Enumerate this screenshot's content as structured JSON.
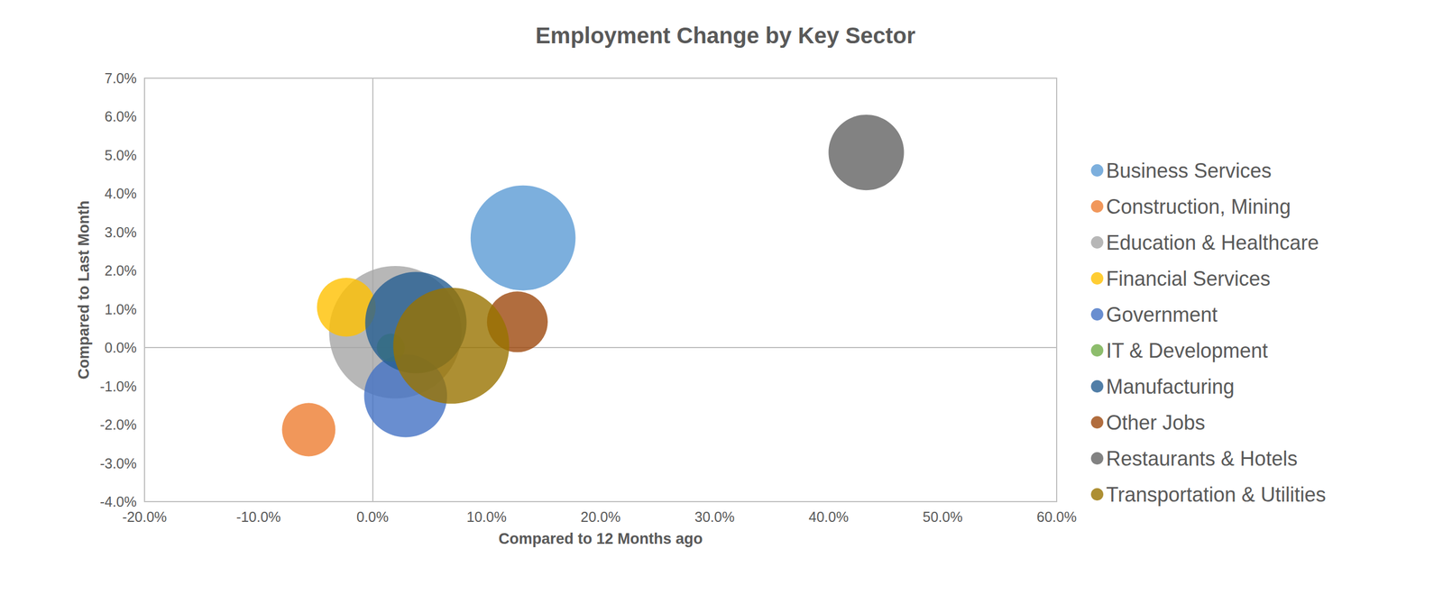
{
  "chart_data": {
    "type": "bubble",
    "title": "Employment Change by Key Sector",
    "x_label": "Compared to 12 Months ago",
    "y_label": "Compared to Last Month",
    "xlim": [
      -20,
      60
    ],
    "xticks": [
      {
        "value": -20,
        "label": "-20.0%"
      },
      {
        "value": -10,
        "label": "-10.0%"
      },
      {
        "value": 0,
        "label": "0.0%"
      },
      {
        "value": 10,
        "label": "10.0%"
      },
      {
        "value": 20,
        "label": "20.0%"
      },
      {
        "value": 30,
        "label": "30.0%"
      },
      {
        "value": 40,
        "label": "40.0%"
      },
      {
        "value": 50,
        "label": "50.0%"
      },
      {
        "value": 60,
        "label": "60.0%"
      }
    ],
    "ylim": [
      -4,
      7
    ],
    "yticks": [
      {
        "value": -4,
        "label": "-4.0%"
      },
      {
        "value": -3,
        "label": "-3.0%"
      },
      {
        "value": -2,
        "label": "-2.0%"
      },
      {
        "value": -1,
        "label": "-1.0%"
      },
      {
        "value": 0,
        "label": "0.0%"
      },
      {
        "value": 1,
        "label": "1.0%"
      },
      {
        "value": 2,
        "label": "2.0%"
      },
      {
        "value": 3,
        "label": "3.0%"
      },
      {
        "value": 4,
        "label": "4.0%"
      },
      {
        "value": 5,
        "label": "5.0%"
      },
      {
        "value": 6,
        "label": "6.0%"
      },
      {
        "value": 7,
        "label": "7.0%"
      }
    ],
    "grid": false,
    "legend": "right",
    "marker": "circle",
    "series": [
      {
        "name": "Business Services",
        "color": "#5b9bd5",
        "x": [
          13.2
        ],
        "y": [
          2.85
        ],
        "sizes": [
          325
        ]
      },
      {
        "name": "Construction, Mining",
        "color": "#ed7d31",
        "x": [
          -5.6
        ],
        "y": [
          -2.13
        ],
        "sizes": [
          84
        ]
      },
      {
        "name": "Education & Healthcare",
        "color": "#a5a5a5",
        "x": [
          2.0
        ],
        "y": [
          0.4
        ],
        "sizes": [
          518
        ]
      },
      {
        "name": "Financial Services",
        "color": "#ffc000",
        "x": [
          -2.3
        ],
        "y": [
          1.05
        ],
        "sizes": [
          102
        ]
      },
      {
        "name": "Government",
        "color": "#4472c4",
        "x": [
          2.9
        ],
        "y": [
          -1.25
        ],
        "sizes": [
          203
        ]
      },
      {
        "name": "IT & Development",
        "color": "#70ad47",
        "x": [
          1.6
        ],
        "y": [
          0.0
        ],
        "sizes": [
          23
        ]
      },
      {
        "name": "Manufacturing",
        "color": "#255e91",
        "x": [
          3.8
        ],
        "y": [
          0.65
        ],
        "sizes": [
          303
        ]
      },
      {
        "name": "Other Jobs",
        "color": "#9e480e",
        "x": [
          12.7
        ],
        "y": [
          0.67
        ],
        "sizes": [
          109
        ]
      },
      {
        "name": "Restaurants & Hotels",
        "color": "#636363",
        "x": [
          43.3
        ],
        "y": [
          5.07
        ],
        "sizes": [
          168
        ]
      },
      {
        "name": "Transportation & Utilities",
        "color": "#997300",
        "x": [
          6.9
        ],
        "y": [
          0.05
        ],
        "sizes": [
          397
        ]
      }
    ]
  }
}
